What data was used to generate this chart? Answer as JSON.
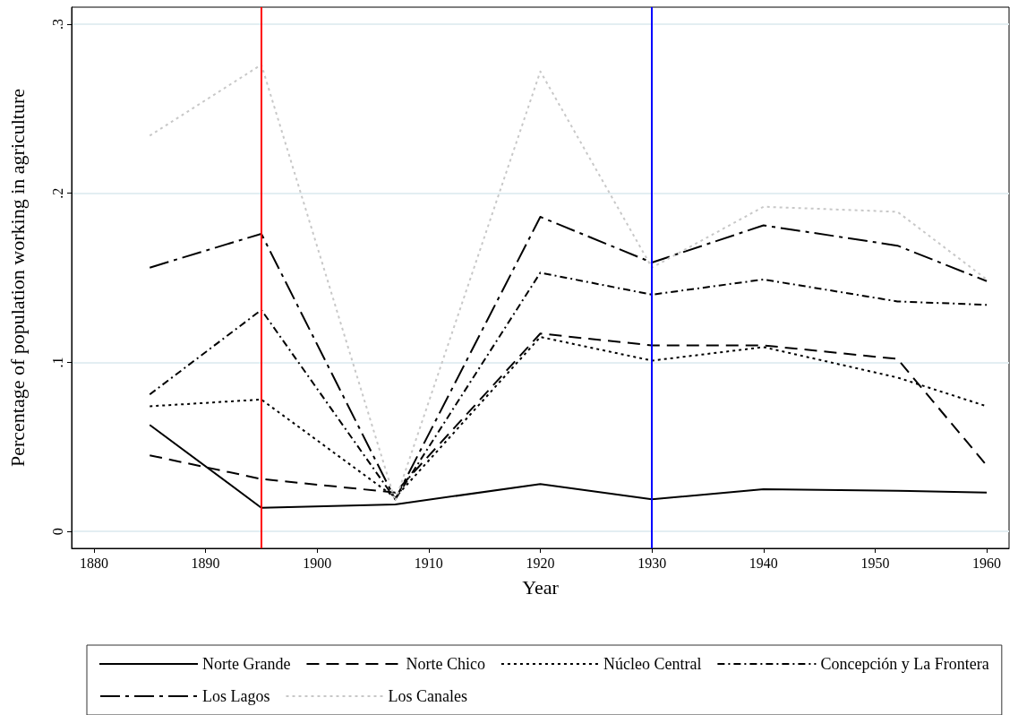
{
  "chart_data": {
    "type": "line",
    "xlabel": "Year",
    "ylabel": "Percentage of population working in agriculture",
    "x": [
      1885,
      1895,
      1907,
      1920,
      1930,
      1940,
      1952,
      1960
    ],
    "xlim": [
      1878,
      1962
    ],
    "xticks": [
      1880,
      1890,
      1900,
      1910,
      1920,
      1930,
      1940,
      1950,
      1960
    ],
    "ylim": [
      -0.01,
      0.31
    ],
    "yticks": [
      {
        "value": 0,
        "label": "0"
      },
      {
        "value": 0.1,
        "label": ".1"
      },
      {
        "value": 0.2,
        "label": ".2"
      },
      {
        "value": 0.3,
        "label": ".3"
      }
    ],
    "grid": "y",
    "legend": "bottom",
    "marker": "none",
    "series": [
      {
        "name": "Norte Grande",
        "color": "#000000",
        "line_style": "solid",
        "values": [
          0.063,
          0.014,
          0.016,
          0.028,
          0.019,
          0.025,
          0.024,
          0.023
        ]
      },
      {
        "name": "Norte Chico",
        "color": "#000000",
        "line_style": "dashed",
        "values": [
          0.045,
          0.031,
          0.023,
          0.117,
          0.11,
          0.11,
          0.102,
          0.039
        ]
      },
      {
        "name": "Núcleo Central",
        "color": "#000000",
        "line_style": "dotted",
        "values": [
          0.074,
          0.078,
          0.02,
          0.115,
          0.101,
          0.109,
          0.091,
          0.074
        ]
      },
      {
        "name": "Concepción y La Frontera",
        "color": "#000000",
        "line_style": "dashdot",
        "values": [
          0.081,
          0.131,
          0.019,
          0.153,
          0.14,
          0.149,
          0.136,
          0.134
        ]
      },
      {
        "name": "Los Lagos",
        "color": "#000000",
        "line_style": "longdashdot",
        "values": [
          0.156,
          0.176,
          0.019,
          0.186,
          0.159,
          0.181,
          0.169,
          0.148
        ]
      },
      {
        "name": "Los Canales",
        "color": "#c8c8c8",
        "line_style": "dotted",
        "values": [
          0.234,
          0.276,
          0.018,
          0.272,
          0.156,
          0.192,
          0.189,
          0.149
        ]
      }
    ],
    "ref_lines": [
      {
        "axis": "x",
        "value": 1895,
        "color": "#ff0000",
        "line_style": "solid"
      },
      {
        "axis": "x",
        "value": 1930,
        "color": "#0000ff",
        "line_style": "solid"
      }
    ]
  }
}
